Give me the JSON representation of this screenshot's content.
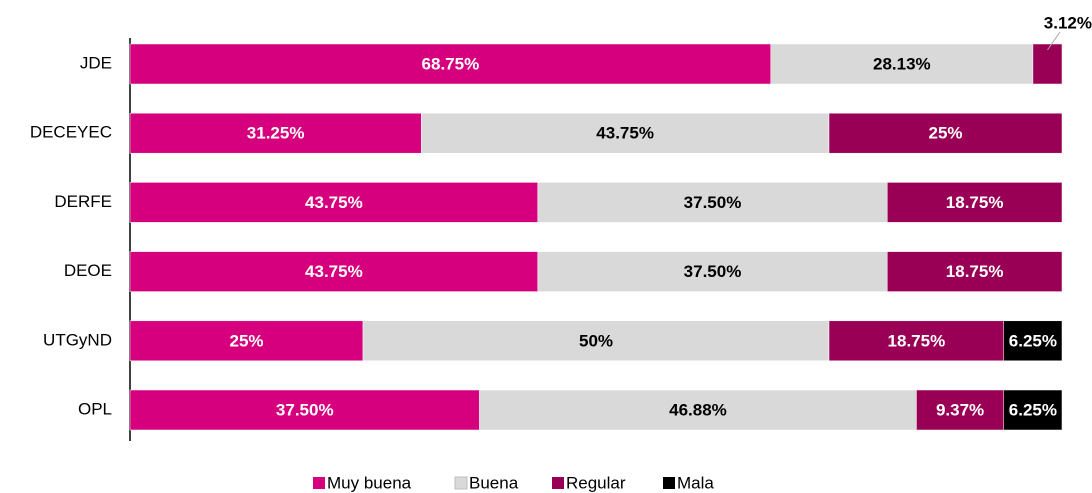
{
  "chart_data": {
    "type": "stacked_barh",
    "categories": [
      "JDE",
      "DECEYEC",
      "DERFE",
      "DEOE",
      "UTGyND",
      "OPL"
    ],
    "xlim": [
      0,
      100
    ],
    "series": [
      {
        "name": "Muy buena",
        "color": "#d6007e",
        "values": [
          68.75,
          31.25,
          43.75,
          43.75,
          25,
          37.5
        ],
        "value_labels": [
          "68.75%",
          "31.25%",
          "43.75%",
          "43.75%",
          "25%",
          "37.50%"
        ]
      },
      {
        "name": "Buena",
        "color": "#d9d9d9",
        "values": [
          28.13,
          43.75,
          37.5,
          37.5,
          50,
          46.88
        ],
        "value_labels": [
          "28.13%",
          "43.75%",
          "37.50%",
          "37.50%",
          "50%",
          "46.88%"
        ]
      },
      {
        "name": "Regular",
        "color": "#990055",
        "values": [
          3.12,
          25,
          18.75,
          18.75,
          18.75,
          9.37
        ],
        "value_labels": [
          "3.12%",
          "25%",
          "18.75%",
          "18.75%",
          "18.75%",
          "9.37%"
        ]
      },
      {
        "name": "Mala",
        "color": "#000000",
        "values": [
          null,
          null,
          null,
          null,
          6.25,
          6.25
        ],
        "value_labels": [
          null,
          null,
          null,
          null,
          "6.25%",
          "6.25%"
        ]
      }
    ],
    "legend": "bottom"
  }
}
